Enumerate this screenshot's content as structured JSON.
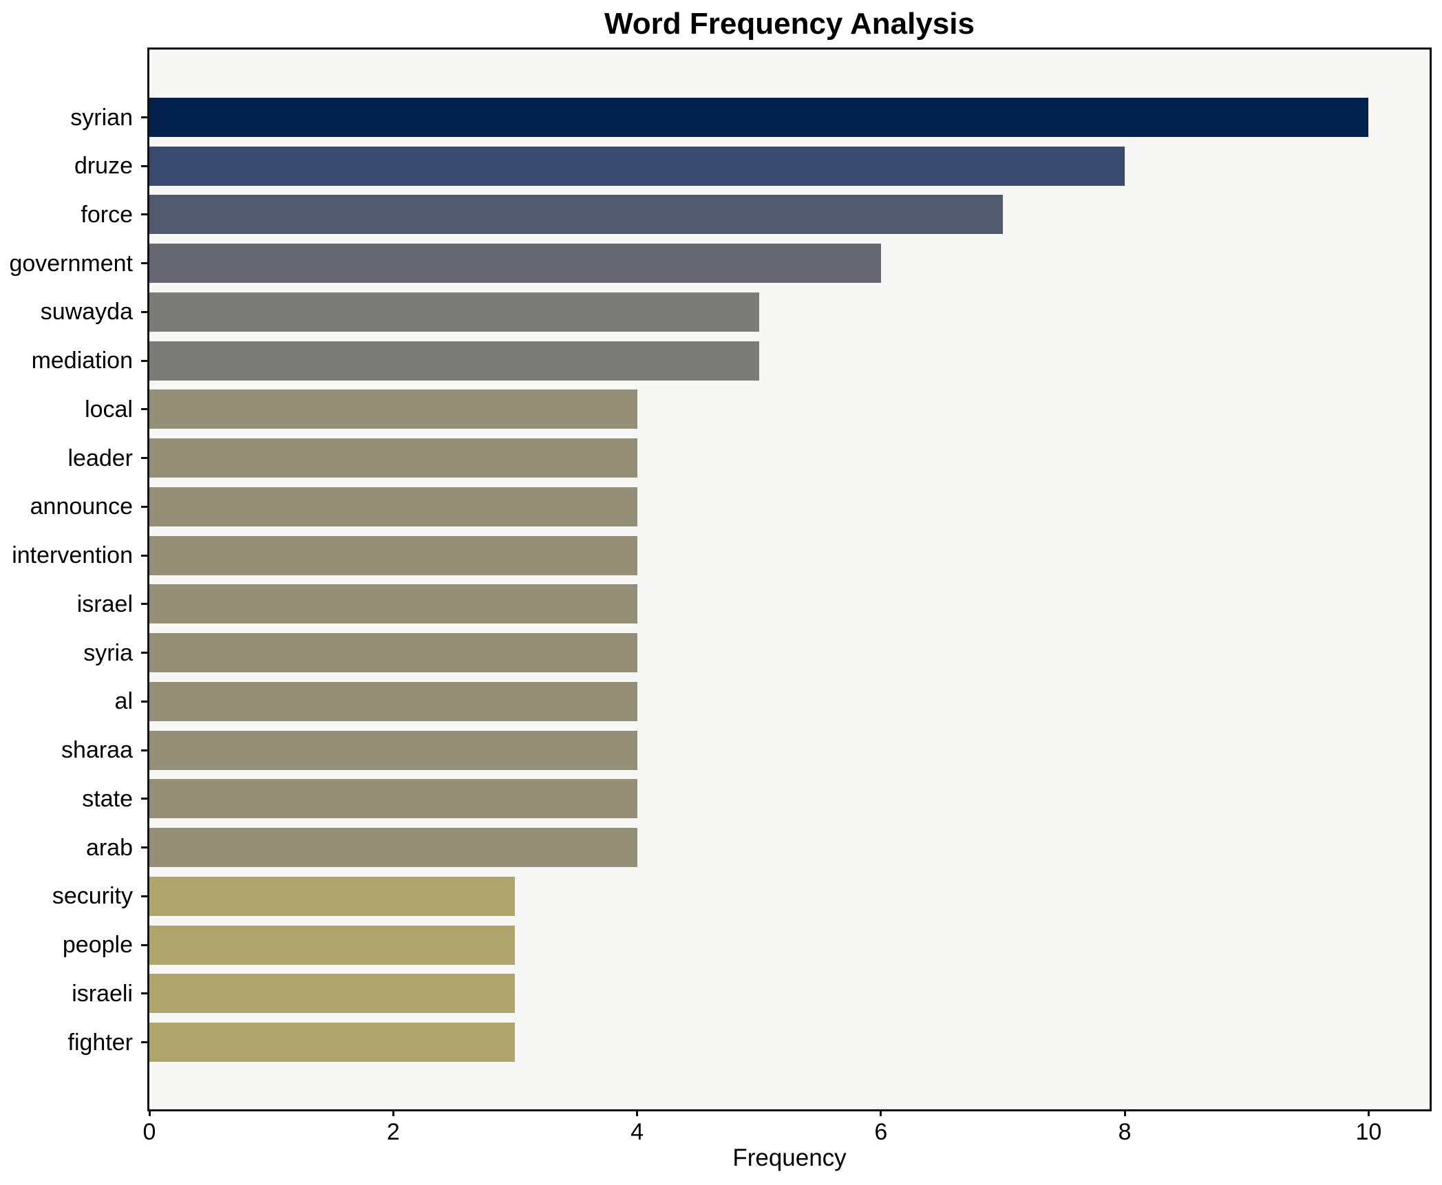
{
  "chart_data": {
    "type": "bar",
    "orientation": "horizontal",
    "title": "Word Frequency Analysis",
    "xlabel": "Frequency",
    "ylabel": "",
    "categories": [
      "syrian",
      "druze",
      "force",
      "government",
      "suwayda",
      "mediation",
      "local",
      "leader",
      "announce",
      "intervention",
      "israel",
      "syria",
      "al",
      "sharaa",
      "state",
      "arab",
      "security",
      "people",
      "israeli",
      "fighter"
    ],
    "values": [
      10,
      8,
      7,
      6,
      5,
      5,
      4,
      4,
      4,
      4,
      4,
      4,
      4,
      4,
      4,
      4,
      3,
      3,
      3,
      3
    ],
    "bar_colors": [
      "#02214d",
      "#3a496e",
      "#525a70",
      "#67686f",
      "#7b7b78",
      "#7b7b78",
      "#948f77",
      "#948f77",
      "#948f77",
      "#948f77",
      "#948f77",
      "#948f77",
      "#948f77",
      "#948f77",
      "#948f77",
      "#948f77",
      "#b0a46d",
      "#b0a46d",
      "#b0a46d",
      "#b0a46d"
    ],
    "xlim": [
      0,
      10.5
    ],
    "xticks": [
      0,
      2,
      4,
      6,
      8,
      10
    ],
    "grid": false,
    "legend_position": "none",
    "plot_bg": "#f7f7f6",
    "figure_bg": "#ffffff",
    "spine_color": "#0e0e0e"
  }
}
